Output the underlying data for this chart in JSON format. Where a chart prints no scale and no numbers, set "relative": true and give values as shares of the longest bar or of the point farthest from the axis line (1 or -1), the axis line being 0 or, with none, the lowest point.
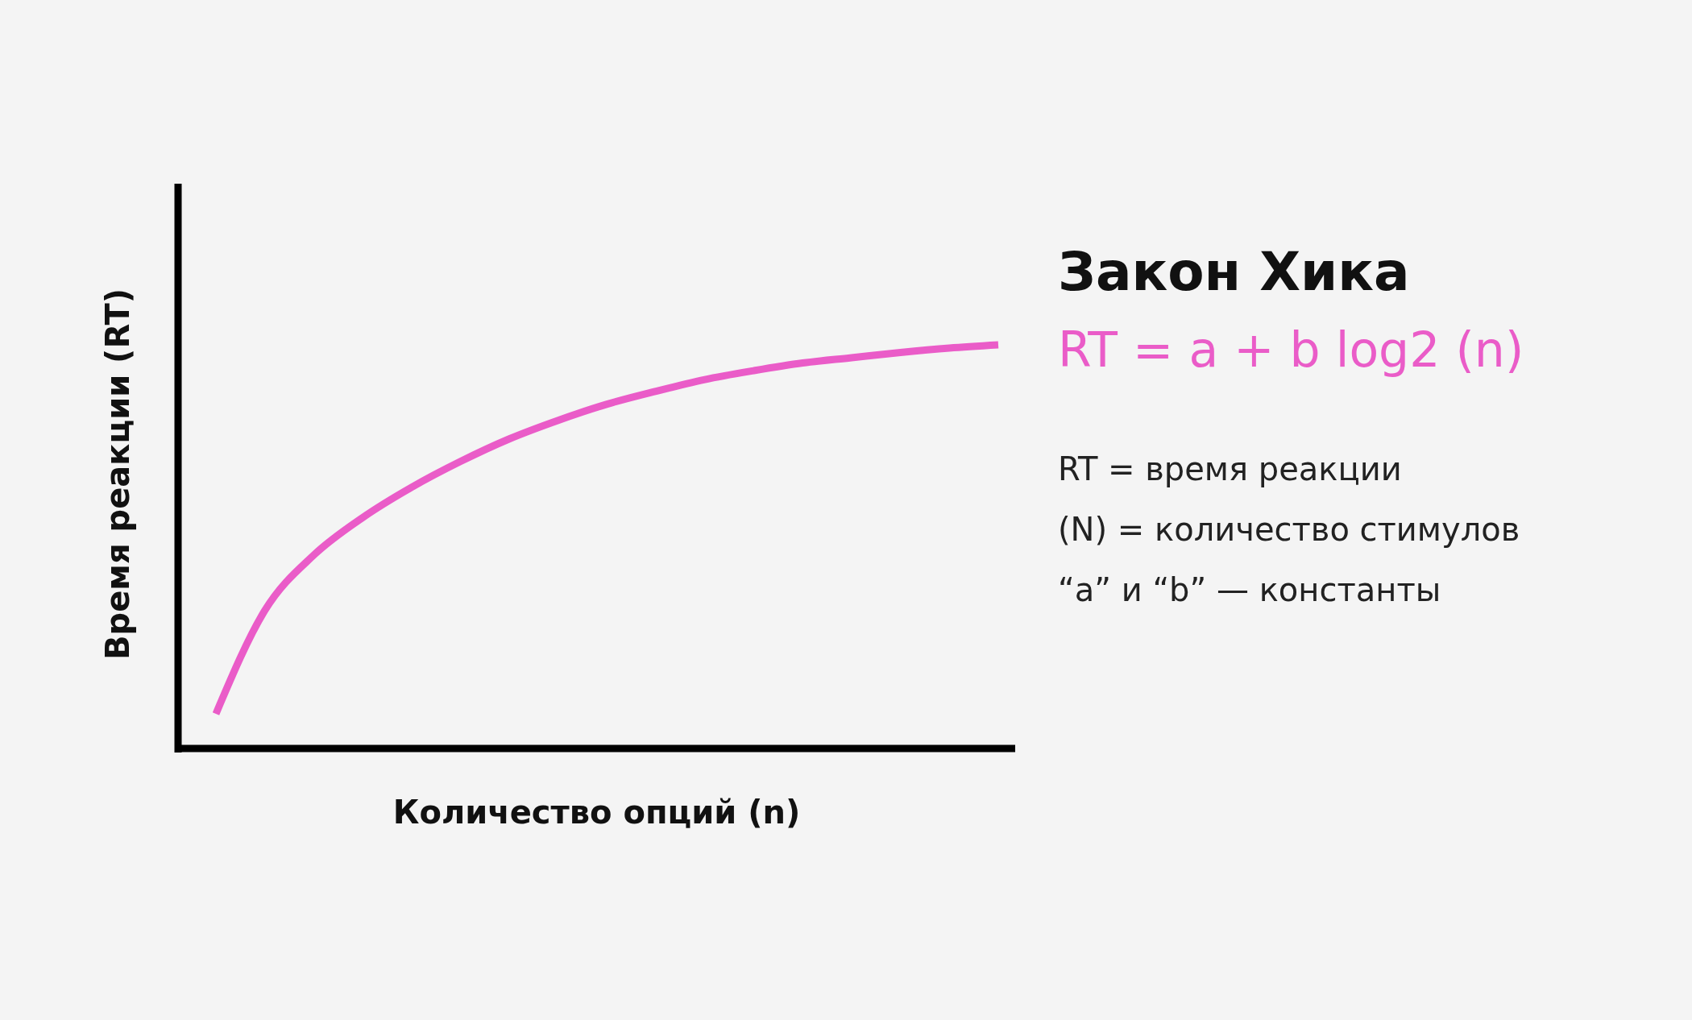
{
  "chart_data": {
    "type": "line",
    "title": "Закон Хика",
    "subtitle": "RT = a + b log2 (n)",
    "xlabel": "Количество опций (n)",
    "ylabel": "Время реакции (RT)",
    "annotations": [
      "RT =  время реакции",
      "(N) = количество стимулов",
      "“a” и “b” — константы"
    ],
    "relative": true,
    "categories": [
      null,
      null,
      null,
      null,
      null,
      null,
      null,
      null,
      null,
      null,
      null,
      null,
      null,
      null,
      null,
      null,
      null
    ],
    "series": [
      {
        "color": "#ea5cc8",
        "values": [
          0.086,
          0.342,
          0.479,
          0.572,
          0.647,
          0.711,
          0.767,
          0.813,
          0.853,
          0.885,
          0.914,
          0.936,
          0.955,
          0.968,
          0.981,
          0.992,
          1
        ]
      }
    ]
  }
}
